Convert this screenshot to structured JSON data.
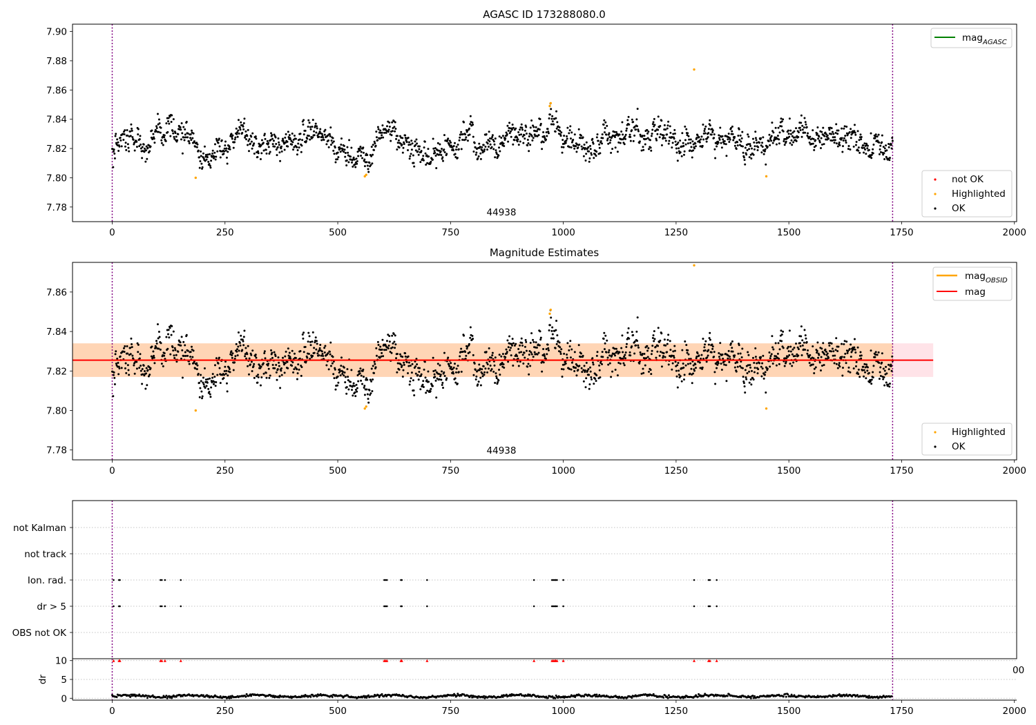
{
  "chart_data": [
    {
      "type": "scatter",
      "title": "AGASC ID 173288080.0",
      "xlim": [
        -88,
        2005
      ],
      "ylim": [
        7.77,
        7.905
      ],
      "x_ticks": [
        0,
        250,
        500,
        750,
        1000,
        1250,
        1500,
        1750,
        2000
      ],
      "y_ticks": [
        "7.78",
        "7.80",
        "7.82",
        "7.84",
        "7.86",
        "7.88",
        "7.90"
      ],
      "vlines": [
        0,
        1730
      ],
      "annotation": "44938",
      "legend_top": [
        {
          "label": "mag_AGASC",
          "color": "#008000"
        }
      ],
      "legend_bottom": [
        {
          "label": "not OK",
          "color": "#ff0000"
        },
        {
          "label": "Highlighted",
          "color": "#ffa500"
        },
        {
          "label": "OK",
          "color": "#000000"
        }
      ],
      "series": [
        {
          "name": "Highlighted",
          "color": "#ffa500",
          "x": [
            185,
            560,
            563,
            970,
            972,
            1290,
            1450
          ],
          "y": [
            7.8,
            7.801,
            7.802,
            7.849,
            7.851,
            7.874,
            7.801
          ]
        }
      ],
      "ok_profile": {
        "x_range": [
          0,
          1730
        ],
        "n_points": 1730,
        "points_estimated": true,
        "trend_x": [
          0,
          40,
          75,
          125,
          175,
          200,
          230,
          290,
          340,
          400,
          440,
          480,
          520,
          560,
          610,
          650,
          700,
          740,
          780,
          830,
          880,
          930,
          970,
          1010,
          1050,
          1100,
          1150,
          1200,
          1260,
          1330,
          1400,
          1450,
          1500,
          1560,
          1620,
          1680,
          1730
        ],
        "trend_y": [
          7.816,
          7.827,
          7.82,
          7.836,
          7.829,
          7.811,
          7.812,
          7.836,
          7.822,
          7.821,
          7.834,
          7.825,
          7.816,
          7.81,
          7.838,
          7.826,
          7.813,
          7.82,
          7.827,
          7.822,
          7.826,
          7.829,
          7.836,
          7.826,
          7.818,
          7.828,
          7.832,
          7.829,
          7.824,
          7.831,
          7.824,
          7.822,
          7.833,
          7.826,
          7.827,
          7.823,
          7.82
        ],
        "scatter_sd": 0.0045
      }
    },
    {
      "type": "scatter",
      "title": "Magnitude Estimates",
      "xlim": [
        -88,
        2005
      ],
      "ylim": [
        7.775,
        7.875
      ],
      "x_ticks": [
        0,
        250,
        500,
        750,
        1000,
        1250,
        1500,
        1750,
        2000
      ],
      "y_ticks": [
        "7.78",
        "7.80",
        "7.82",
        "7.84",
        "7.86"
      ],
      "vlines": [
        0,
        1730
      ],
      "annotation": "44938",
      "mag_line": 7.8255,
      "mag_band": [
        7.817,
        7.834
      ],
      "mag_band_x": [
        -88,
        1820
      ],
      "legend_top": [
        {
          "label": "mag_OBSID",
          "color": "#ffa500"
        },
        {
          "label": "mag",
          "color": "#ff0000"
        }
      ],
      "legend_bottom": [
        {
          "label": "Highlighted",
          "color": "#ffa500"
        },
        {
          "label": "OK",
          "color": "#000000"
        }
      ],
      "series": [
        {
          "name": "Highlighted",
          "color": "#ffa500",
          "x": [
            185,
            560,
            563,
            970,
            972,
            1290,
            1450
          ],
          "y": [
            7.8,
            7.801,
            7.802,
            7.849,
            7.851,
            7.874,
            7.801
          ]
        }
      ]
    },
    {
      "type": "scatter",
      "title": "",
      "xlim": [
        -88,
        2005
      ],
      "categories": [
        "not Kalman",
        "not track",
        "Ion. rad.",
        "dr > 5",
        "OBS not OK"
      ],
      "flag_x": [
        3,
        15,
        17,
        107,
        110,
        117,
        152,
        603,
        606,
        609,
        640,
        642,
        698,
        935,
        975,
        978,
        981,
        983,
        986,
        1000,
        1290,
        1322,
        1325,
        1340
      ],
      "flags": {
        "not Kalman": [],
        "not track": [],
        "Ion. rad.": "flag_x",
        "dr > 5": "flag_x",
        "OBS not OK": []
      },
      "vlines": [
        0,
        1730
      ]
    },
    {
      "type": "scatter",
      "title": "",
      "xlim": [
        -88,
        2005
      ],
      "ylim": [
        -0.5,
        10.5
      ],
      "ylabel": "dr",
      "x_ticks": [
        0,
        250,
        500,
        750,
        1000,
        1250,
        1500,
        1750,
        2000
      ],
      "y_ticks": [
        0,
        5,
        10
      ],
      "vlines": [
        0,
        1730
      ],
      "clipped_markers": {
        "y": 10,
        "color": "#ff0000",
        "x": "flag_x"
      },
      "dr_profile": {
        "mean": 0.55,
        "amplitude": 0.5,
        "points_estimated": true
      }
    }
  ],
  "partial_tick_label": "00"
}
